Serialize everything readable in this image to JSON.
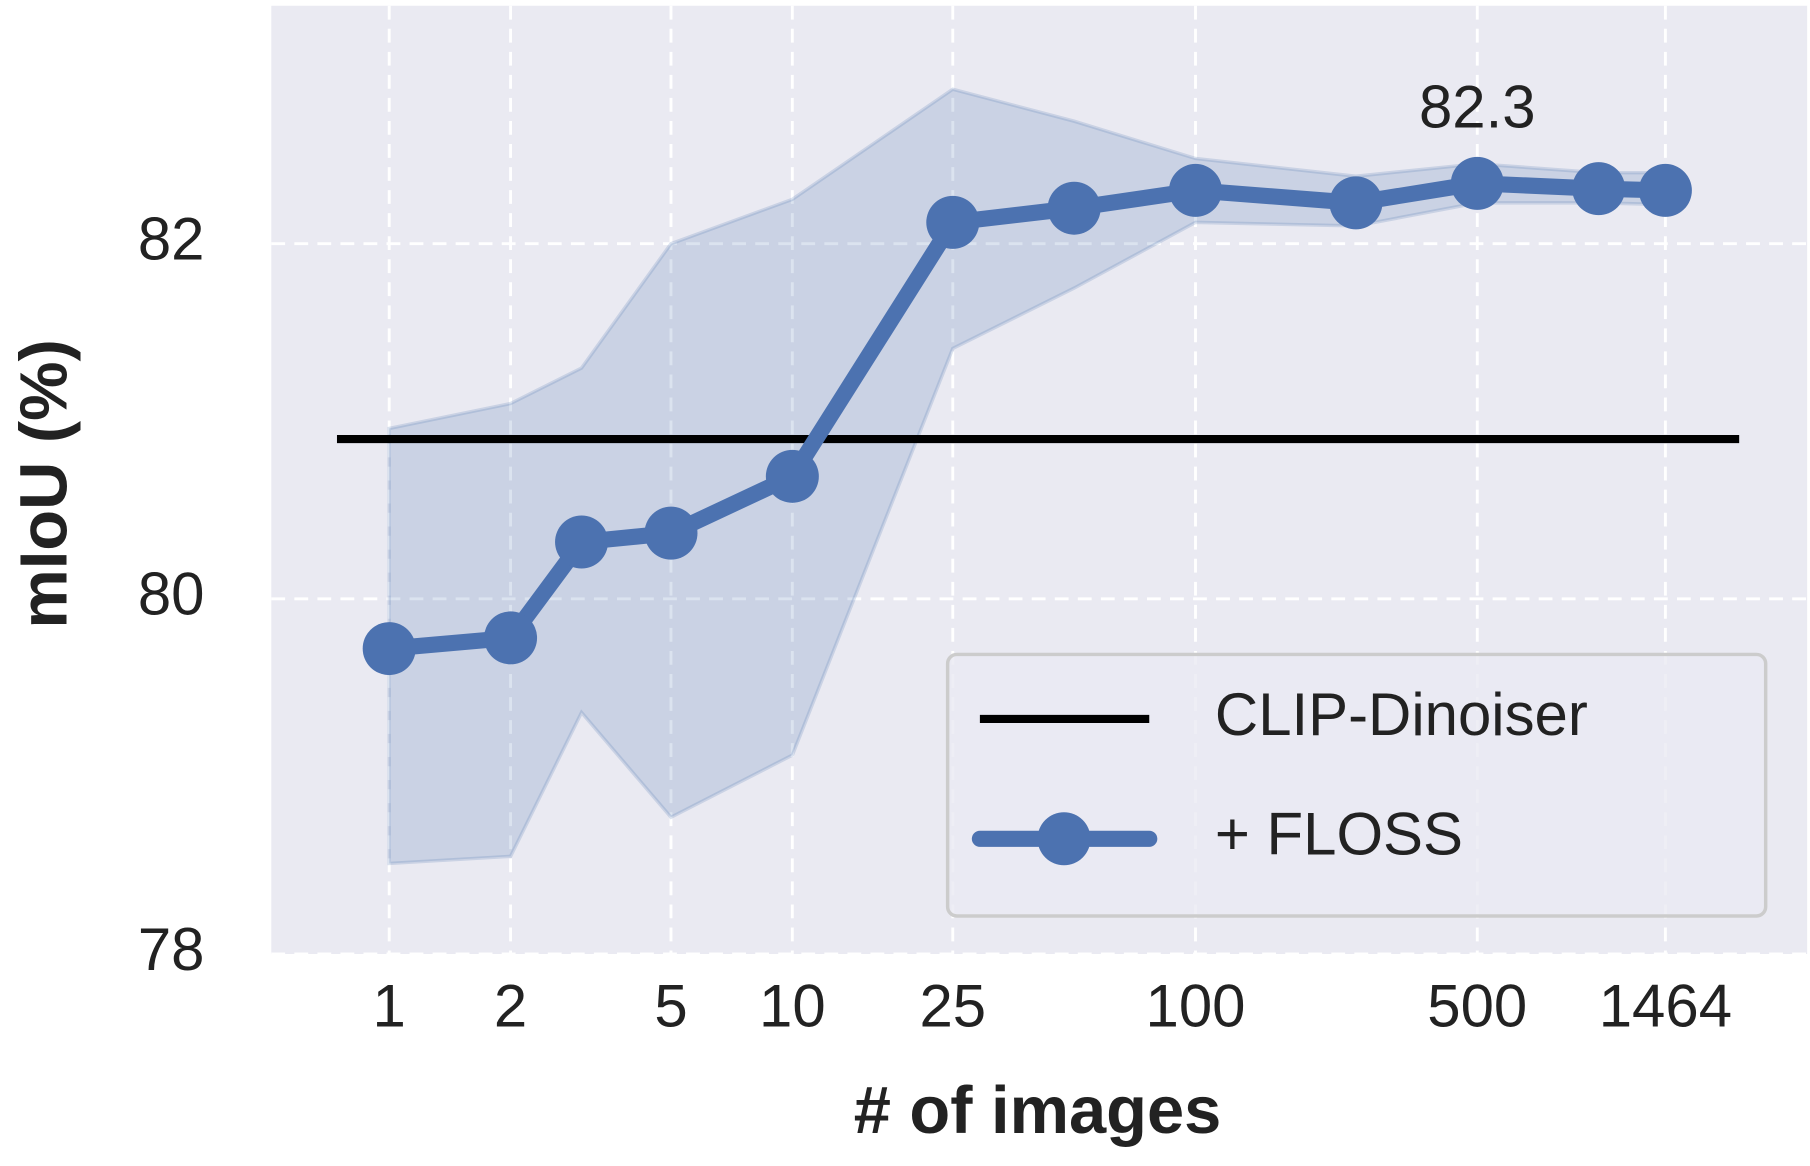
{
  "chart_data": {
    "type": "line",
    "x_label": "# of images",
    "y_label": "mIoU (%)",
    "x": [
      1,
      2,
      3,
      5,
      10,
      25,
      50,
      100,
      250,
      500,
      1000,
      1464
    ],
    "series": [
      {
        "name": "+ FLOSS",
        "color": "#4c72b0",
        "values": [
          79.72,
          79.78,
          80.32,
          80.37,
          80.69,
          82.12,
          82.2,
          82.3,
          82.23,
          82.34,
          82.31,
          82.3
        ],
        "lower": [
          78.51,
          78.55,
          79.36,
          78.77,
          79.12,
          81.41,
          81.75,
          82.12,
          82.1,
          82.23,
          82.23,
          82.22
        ],
        "upper": [
          80.96,
          81.1,
          81.3,
          82.0,
          82.25,
          82.87,
          82.69,
          82.48,
          82.38,
          82.45,
          82.4,
          82.4
        ],
        "value_labels": [
          null,
          null,
          null,
          null,
          null,
          null,
          null,
          null,
          null,
          "82.3",
          null,
          null
        ]
      }
    ],
    "reference_lines": [
      {
        "name": "CLIP-Dinoiser",
        "value": 80.9,
        "color": "#000000"
      }
    ],
    "xscale": "log",
    "xlim": [
      0.51,
      3290
    ],
    "xticks": [
      1,
      2,
      5,
      10,
      25,
      100,
      500,
      1464
    ],
    "ylim": [
      78,
      83.34
    ],
    "yticks": [
      78,
      80,
      82
    ],
    "grid": true,
    "legend": "lower right"
  }
}
